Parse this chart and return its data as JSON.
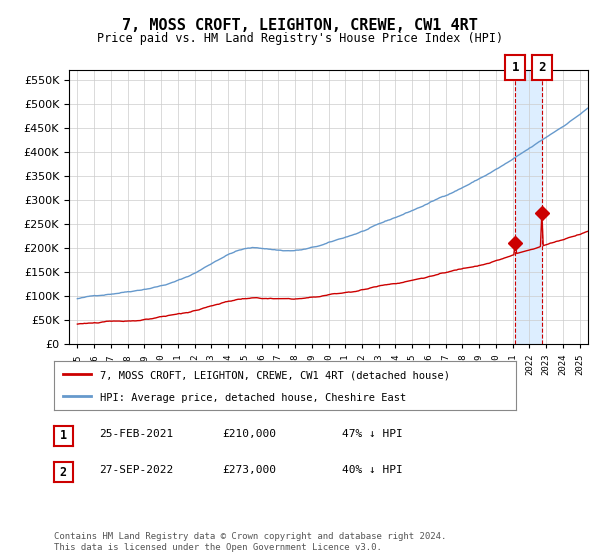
{
  "title": "7, MOSS CROFT, LEIGHTON, CREWE, CW1 4RT",
  "subtitle": "Price paid vs. HM Land Registry's House Price Index (HPI)",
  "hpi_color": "#6699cc",
  "price_color": "#cc0000",
  "background_color": "#ffffff",
  "grid_color": "#cccccc",
  "plot_bg_color": "#ffffff",
  "highlight_bg": "#ddeeff",
  "ylim": [
    0,
    570000
  ],
  "yticks": [
    0,
    50000,
    100000,
    150000,
    200000,
    250000,
    300000,
    350000,
    400000,
    450000,
    500000,
    550000
  ],
  "sale1_date": "25-FEB-2021",
  "sale1_price": 210000,
  "sale1_pct": "47% ↓ HPI",
  "sale2_date": "27-SEP-2022",
  "sale2_price": 273000,
  "sale2_pct": "40% ↓ HPI",
  "legend1": "7, MOSS CROFT, LEIGHTON, CREWE, CW1 4RT (detached house)",
  "legend2": "HPI: Average price, detached house, Cheshire East",
  "footnote": "Contains HM Land Registry data © Crown copyright and database right 2024.\nThis data is licensed under the Open Government Licence v3.0.",
  "x_start_year": 1995,
  "x_end_year": 2025,
  "sale1_x": 2021.15,
  "sale2_x": 2022.75
}
